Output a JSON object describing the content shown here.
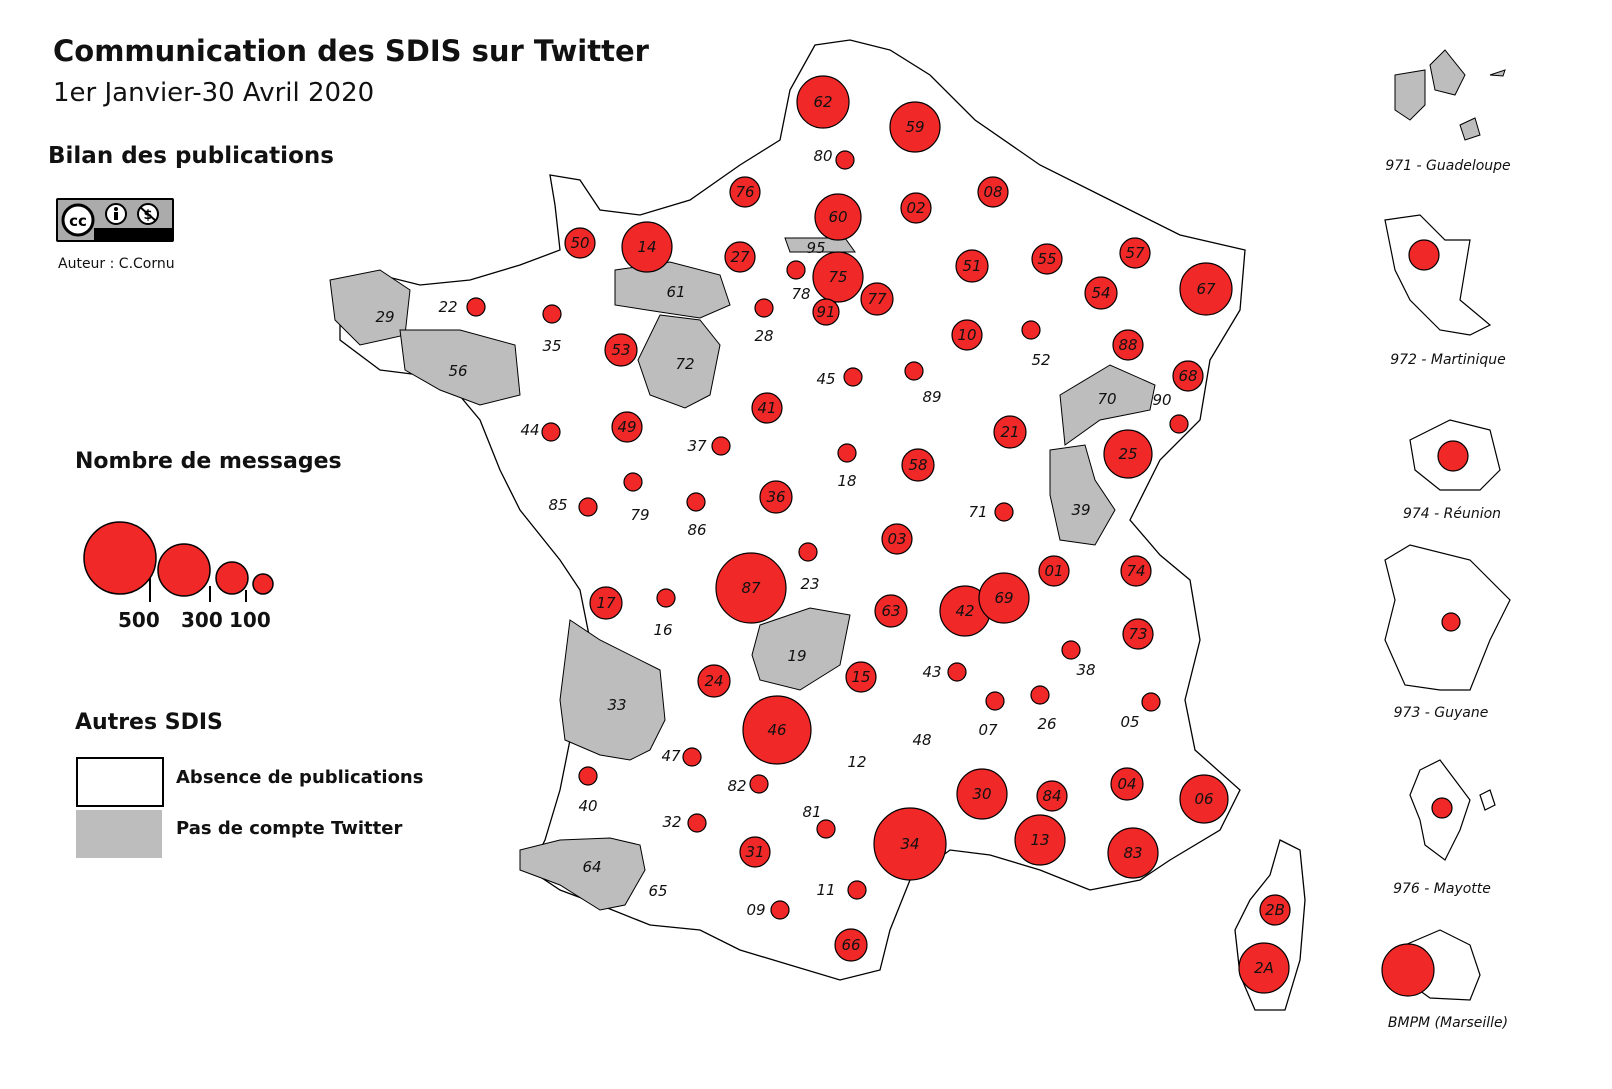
{
  "title": "Communication des SDIS sur Twitter",
  "subtitle": "1er Janvier-30 Avril 2020",
  "bilan_heading": "Bilan des publications",
  "license": {
    "icon": "cc-by-nc-icon",
    "author": "Auteur : C.Cornu"
  },
  "size_legend": {
    "heading": "Nombre de messages",
    "items": [
      {
        "label": "500",
        "value": 500
      },
      {
        "label": "300",
        "value": 300
      },
      {
        "label": "100",
        "value": 100
      },
      {
        "label": "",
        "value": 30
      }
    ]
  },
  "category_legend": {
    "heading": "Autres SDIS",
    "items": [
      {
        "label": "Absence de publications",
        "color": "#ffffff"
      },
      {
        "label": "Pas de compte Twitter",
        "color": "#bdbdbd"
      }
    ]
  },
  "colors": {
    "circle": "#f02828",
    "no_account": "#bdbdbd",
    "department": "#ffffff",
    "border": "#000000"
  },
  "departments": [
    {
      "code": "62"
    },
    {
      "code": "59"
    },
    {
      "code": "80"
    },
    {
      "code": "76"
    },
    {
      "code": "60"
    },
    {
      "code": "02"
    },
    {
      "code": "08"
    },
    {
      "code": "50"
    },
    {
      "code": "14"
    },
    {
      "code": "27"
    },
    {
      "code": "95",
      "no_account": true
    },
    {
      "code": "75"
    },
    {
      "code": "51"
    },
    {
      "code": "55"
    },
    {
      "code": "57"
    },
    {
      "code": "22"
    },
    {
      "code": "61",
      "no_account": true
    },
    {
      "code": "78"
    },
    {
      "code": "77"
    },
    {
      "code": "54"
    },
    {
      "code": "67"
    },
    {
      "code": "29",
      "no_account": true
    },
    {
      "code": "35"
    },
    {
      "code": "53"
    },
    {
      "code": "72",
      "no_account": true
    },
    {
      "code": "28"
    },
    {
      "code": "91"
    },
    {
      "code": "10"
    },
    {
      "code": "52"
    },
    {
      "code": "88"
    },
    {
      "code": "56",
      "no_account": true
    },
    {
      "code": "45"
    },
    {
      "code": "89"
    },
    {
      "code": "68"
    },
    {
      "code": "70",
      "no_account": true
    },
    {
      "code": "90"
    },
    {
      "code": "44"
    },
    {
      "code": "49"
    },
    {
      "code": "37"
    },
    {
      "code": "41"
    },
    {
      "code": "18"
    },
    {
      "code": "58"
    },
    {
      "code": "21"
    },
    {
      "code": "25"
    },
    {
      "code": "85"
    },
    {
      "code": "79"
    },
    {
      "code": "86"
    },
    {
      "code": "36"
    },
    {
      "code": "71"
    },
    {
      "code": "39",
      "no_account": true
    },
    {
      "code": "03"
    },
    {
      "code": "01"
    },
    {
      "code": "74"
    },
    {
      "code": "17"
    },
    {
      "code": "16"
    },
    {
      "code": "87"
    },
    {
      "code": "23"
    },
    {
      "code": "63"
    },
    {
      "code": "42"
    },
    {
      "code": "69"
    },
    {
      "code": "73"
    },
    {
      "code": "33",
      "no_account": true
    },
    {
      "code": "24"
    },
    {
      "code": "19",
      "no_account": true
    },
    {
      "code": "15"
    },
    {
      "code": "43"
    },
    {
      "code": "38"
    },
    {
      "code": "46"
    },
    {
      "code": "48"
    },
    {
      "code": "07"
    },
    {
      "code": "26"
    },
    {
      "code": "05"
    },
    {
      "code": "47"
    },
    {
      "code": "12"
    },
    {
      "code": "40"
    },
    {
      "code": "82"
    },
    {
      "code": "30"
    },
    {
      "code": "84"
    },
    {
      "code": "04"
    },
    {
      "code": "06"
    },
    {
      "code": "32"
    },
    {
      "code": "81"
    },
    {
      "code": "34"
    },
    {
      "code": "13"
    },
    {
      "code": "83"
    },
    {
      "code": "64",
      "no_account": true
    },
    {
      "code": "31"
    },
    {
      "code": "11"
    },
    {
      "code": "65"
    },
    {
      "code": "09"
    },
    {
      "code": "2B"
    },
    {
      "code": "66"
    },
    {
      "code": "2A"
    }
  ],
  "overseas": [
    {
      "label": "971 - Guadeloupe",
      "no_account": true
    },
    {
      "label": "972 - Martinique"
    },
    {
      "label": "974 - Réunion"
    },
    {
      "label": "973 - Guyane"
    },
    {
      "label": "976 - Mayotte"
    },
    {
      "label": "BMPM (Marseille)"
    }
  ]
}
